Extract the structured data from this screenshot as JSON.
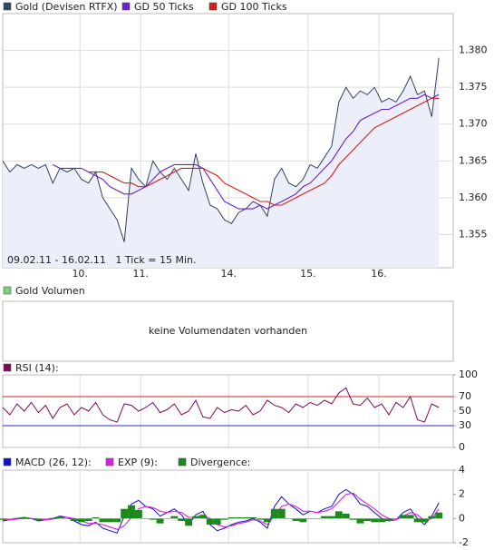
{
  "chart_data": [
    {
      "type": "line",
      "series": [
        {
          "name": "Gold (Devisen RTFX)",
          "color": "#34425e",
          "fill": "#eceff9",
          "values": [
            1.365,
            1.3635,
            1.3645,
            1.364,
            1.3645,
            1.364,
            1.3645,
            1.362,
            1.364,
            1.3635,
            1.364,
            1.3625,
            1.362,
            1.3635,
            1.36,
            1.3585,
            1.357,
            1.354,
            1.364,
            1.3625,
            1.3615,
            1.365,
            1.3635,
            1.3625,
            1.364,
            1.3625,
            1.361,
            1.366,
            1.362,
            1.359,
            1.3585,
            1.357,
            1.3565,
            1.358,
            1.3585,
            1.3595,
            1.359,
            1.3575,
            1.3625,
            1.364,
            1.362,
            1.3615,
            1.3625,
            1.3645,
            1.364,
            1.3655,
            1.367,
            1.373,
            1.375,
            1.3735,
            1.3745,
            1.374,
            1.375,
            1.373,
            1.3735,
            1.373,
            1.3745,
            1.3765,
            1.374,
            1.3745,
            1.371,
            1.379
          ]
        },
        {
          "name": "GD 50 Ticks",
          "color": "#6a1fd0",
          "values": [
            null,
            null,
            null,
            null,
            null,
            null,
            null,
            1.3645,
            1.364,
            1.364,
            1.364,
            1.364,
            1.3635,
            1.363,
            1.3625,
            1.3615,
            1.361,
            1.3605,
            1.3605,
            1.361,
            1.3615,
            1.3625,
            1.3635,
            1.364,
            1.3645,
            1.3645,
            1.3645,
            1.3645,
            1.364,
            1.3625,
            1.361,
            1.3595,
            1.359,
            1.3585,
            1.3585,
            1.3585,
            1.359,
            1.3585,
            1.359,
            1.3595,
            1.36,
            1.3605,
            1.3615,
            1.362,
            1.363,
            1.364,
            1.365,
            1.3665,
            1.368,
            1.369,
            1.3705,
            1.371,
            1.3715,
            1.372,
            1.372,
            1.3725,
            1.373,
            1.3735,
            1.3735,
            1.374,
            1.3735,
            1.374
          ]
        },
        {
          "name": "GD 100 Ticks",
          "color": "#d81c1c",
          "values": [
            null,
            null,
            null,
            null,
            null,
            null,
            null,
            null,
            null,
            null,
            null,
            null,
            1.3635,
            1.3635,
            1.3635,
            1.363,
            1.3625,
            1.362,
            1.362,
            1.3615,
            1.3615,
            1.362,
            1.3625,
            1.363,
            1.3635,
            1.364,
            1.364,
            1.364,
            1.364,
            1.3635,
            1.363,
            1.362,
            1.3615,
            1.361,
            1.3605,
            1.36,
            1.3595,
            1.3595,
            1.359,
            1.359,
            1.3595,
            1.36,
            1.3605,
            1.361,
            1.3615,
            1.362,
            1.363,
            1.3645,
            1.3655,
            1.3665,
            1.3675,
            1.3685,
            1.3695,
            1.37,
            1.3705,
            1.371,
            1.3715,
            1.372,
            1.3725,
            1.373,
            1.3735,
            1.3735
          ]
        }
      ],
      "xlim": [
        0,
        63
      ],
      "xticks": [
        {
          "value": 10.8,
          "label": "10."
        },
        {
          "value": 19.3,
          "label": "11."
        },
        {
          "value": 31.6,
          "label": "14."
        },
        {
          "value": 42.7,
          "label": "15."
        },
        {
          "value": 52.6,
          "label": "16."
        }
      ],
      "ylim": [
        1.3505,
        1.385
      ],
      "yticks": [
        {
          "value": 1.355,
          "label": "1.355"
        },
        {
          "value": 1.36,
          "label": "1.360"
        },
        {
          "value": 1.365,
          "label": "1.365"
        },
        {
          "value": 1.37,
          "label": "1.370"
        },
        {
          "value": 1.375,
          "label": "1.375"
        },
        {
          "value": 1.38,
          "label": "1.380"
        }
      ],
      "grid": true,
      "note": "09.02.11 - 16.02.11   1 Tick = 15 Min."
    },
    {
      "type": "empty",
      "series": [
        {
          "name": "Gold Volumen",
          "color": "#7cd07c"
        }
      ],
      "message": "keine Volumendaten vorhanden"
    },
    {
      "type": "line",
      "series": [
        {
          "name": "RSI (14):",
          "color": "#7a0a5a",
          "values": [
            55,
            45,
            60,
            50,
            62,
            48,
            58,
            40,
            55,
            60,
            45,
            55,
            50,
            62,
            45,
            38,
            35,
            60,
            58,
            50,
            55,
            62,
            48,
            52,
            60,
            45,
            50,
            65,
            42,
            40,
            55,
            48,
            52,
            50,
            58,
            45,
            50,
            65,
            58,
            55,
            48,
            60,
            55,
            62,
            58,
            65,
            60,
            75,
            82,
            60,
            58,
            68,
            55,
            60,
            45,
            62,
            55,
            70,
            38,
            35,
            60,
            55
          ]
        }
      ],
      "xlim": [
        0,
        63
      ],
      "ylim": [
        0,
        100
      ],
      "yticks": [
        0,
        30,
        50,
        70,
        100
      ],
      "reference_lines": [
        {
          "value": 70,
          "color": "#d82020"
        },
        {
          "value": 30,
          "color": "#2a2ad0"
        }
      ]
    },
    {
      "type": "line",
      "series": [
        {
          "name": "MACD (26, 12):",
          "color": "#1010c8",
          "values": [
            -0.2,
            -0.1,
            0,
            0.1,
            0,
            -0.2,
            -0.1,
            0,
            0.2,
            0.1,
            -0.2,
            -0.5,
            -0.6,
            -0.3,
            -0.8,
            -1.0,
            -1.2,
            0.2,
            1.2,
            1.5,
            1.0,
            0.8,
            0.2,
            0.5,
            0.8,
            0.3,
            -0.5,
            0.3,
            0.6,
            -0.5,
            -1.0,
            -0.8,
            -0.5,
            -0.3,
            -0.2,
            0,
            -0.3,
            -0.8,
            1.0,
            1.8,
            1.2,
            0.8,
            0.3,
            0.6,
            0.5,
            0.8,
            1.0,
            2.0,
            2.4,
            2.0,
            1.2,
            1.0,
            0.5,
            0,
            -0.2,
            -0.1,
            0.5,
            0.8,
            0,
            -0.5,
            0.2,
            1.3
          ]
        },
        {
          "name": "EXP (9):",
          "color": "#e020e0",
          "values": [
            -0.1,
            -0.1,
            -0.05,
            0,
            0,
            -0.05,
            -0.1,
            -0.05,
            0.05,
            0.1,
            0,
            -0.2,
            -0.4,
            -0.4,
            -0.5,
            -0.7,
            -0.9,
            -0.6,
            0.1,
            0.8,
            1.0,
            0.9,
            0.6,
            0.5,
            0.6,
            0.5,
            0.1,
            0.1,
            0.3,
            0,
            -0.5,
            -0.7,
            -0.6,
            -0.4,
            -0.3,
            -0.1,
            -0.2,
            -0.5,
            0.2,
            1.0,
            1.2,
            1.0,
            0.6,
            0.6,
            0.5,
            0.6,
            0.8,
            1.4,
            2.0,
            2.1,
            1.6,
            1.2,
            0.8,
            0.3,
            0,
            -0.1,
            0.2,
            0.5,
            0.3,
            -0.2,
            0,
            0.8
          ]
        },
        {
          "name": "Divergence:",
          "color": "#1a8a1a",
          "kind": "bar",
          "values": [
            -0.1,
            0,
            0.05,
            0.1,
            0,
            -0.15,
            0,
            0.05,
            0.15,
            0,
            -0.2,
            -0.3,
            -0.2,
            0.1,
            -0.3,
            -0.3,
            -0.3,
            0.8,
            1.1,
            0.7,
            0,
            -0.1,
            -0.4,
            0,
            0.2,
            -0.2,
            -0.6,
            0.2,
            0.3,
            -0.5,
            -0.5,
            -0.1,
            0.1,
            0.1,
            0.1,
            0.1,
            -0.1,
            -0.3,
            0.8,
            0.8,
            0,
            -0.2,
            -0.3,
            0,
            0,
            0.2,
            0.2,
            0.6,
            0.4,
            -0.1,
            -0.4,
            -0.2,
            -0.3,
            -0.3,
            -0.2,
            0,
            0.3,
            0.3,
            -0.3,
            -0.3,
            0.2,
            0.5
          ]
        }
      ],
      "xlim": [
        0,
        63
      ],
      "ylim": [
        -2,
        4
      ],
      "yticks": [
        -2,
        0,
        2,
        4
      ]
    }
  ]
}
